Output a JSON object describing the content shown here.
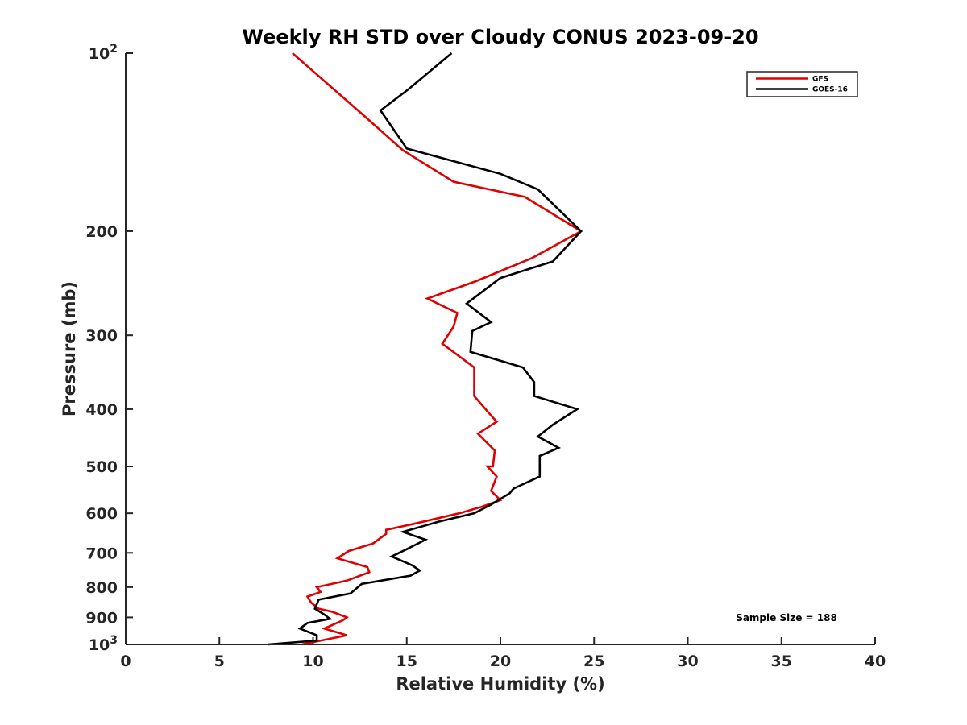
{
  "chart_data": {
    "type": "line",
    "title": "Weekly RH STD over Cloudy CONUS 2023-09-20",
    "xlabel": "Relative Humidity (%)",
    "ylabel": "Pressure (mb)",
    "xlim": [
      0,
      40
    ],
    "ylim": [
      100,
      1000
    ],
    "y_scale": "log",
    "y_reversed": true,
    "grid": false,
    "legend_position": "top-right",
    "x_ticks": [
      "0",
      "5",
      "10",
      "15",
      "20",
      "25",
      "30",
      "35",
      "40"
    ],
    "y_ticks": [
      {
        "value": 100,
        "base": "10",
        "exp": "2"
      },
      {
        "value": 200,
        "label": "200"
      },
      {
        "value": 300,
        "label": "300"
      },
      {
        "value": 400,
        "label": "400"
      },
      {
        "value": 500,
        "label": "500"
      },
      {
        "value": 600,
        "label": "600"
      },
      {
        "value": 700,
        "label": "700"
      },
      {
        "value": 800,
        "label": "800"
      },
      {
        "value": 900,
        "label": "900"
      },
      {
        "value": 1000,
        "base": "10",
        "exp": "3"
      }
    ],
    "annotation": "Sample Size = 188",
    "series": [
      {
        "name": "GFS",
        "color": "#e00000",
        "points": [
          [
            8.9,
            100
          ],
          [
            12.4,
            125
          ],
          [
            14.8,
            146
          ],
          [
            17.5,
            165
          ],
          [
            21.3,
            175
          ],
          [
            24.3,
            200
          ],
          [
            21.7,
            222
          ],
          [
            18.7,
            243
          ],
          [
            16.1,
            260
          ],
          [
            17.7,
            275
          ],
          [
            17.5,
            290
          ],
          [
            16.9,
            310
          ],
          [
            18.6,
            340
          ],
          [
            18.6,
            380
          ],
          [
            19.5,
            410
          ],
          [
            19.8,
            420
          ],
          [
            18.8,
            440
          ],
          [
            19.7,
            470
          ],
          [
            19.6,
            500
          ],
          [
            19.3,
            500
          ],
          [
            19.8,
            520
          ],
          [
            19.5,
            550
          ],
          [
            20.0,
            570
          ],
          [
            19.0,
            585
          ],
          [
            17.8,
            600
          ],
          [
            15.4,
            625
          ],
          [
            13.9,
            640
          ],
          [
            13.9,
            650
          ],
          [
            13.2,
            675
          ],
          [
            11.9,
            695
          ],
          [
            11.3,
            715
          ],
          [
            12.9,
            740
          ],
          [
            13.0,
            755
          ],
          [
            11.8,
            780
          ],
          [
            10.2,
            800
          ],
          [
            10.4,
            815
          ],
          [
            9.7,
            830
          ],
          [
            9.9,
            850
          ],
          [
            10.3,
            870
          ],
          [
            11.0,
            880
          ],
          [
            11.8,
            900
          ],
          [
            11.6,
            910
          ],
          [
            10.6,
            940
          ],
          [
            11.8,
            965
          ],
          [
            9.4,
            1000
          ]
        ]
      },
      {
        "name": "GOES-16",
        "color": "#000000",
        "points": [
          [
            17.4,
            100
          ],
          [
            15.1,
            115
          ],
          [
            13.6,
            125
          ],
          [
            15.0,
            145
          ],
          [
            20.0,
            160
          ],
          [
            22.0,
            170
          ],
          [
            24.3,
            200
          ],
          [
            22.8,
            225
          ],
          [
            20.0,
            240
          ],
          [
            18.2,
            265
          ],
          [
            19.5,
            285
          ],
          [
            18.5,
            295
          ],
          [
            18.4,
            320
          ],
          [
            21.2,
            340
          ],
          [
            21.8,
            360
          ],
          [
            21.8,
            380
          ],
          [
            24.1,
            400
          ],
          [
            22.8,
            425
          ],
          [
            22.0,
            445
          ],
          [
            23.1,
            465
          ],
          [
            22.1,
            480
          ],
          [
            22.1,
            520
          ],
          [
            20.7,
            545
          ],
          [
            20.5,
            555
          ],
          [
            19.5,
            580
          ],
          [
            18.6,
            600
          ],
          [
            16.7,
            620
          ],
          [
            14.8,
            645
          ],
          [
            16.0,
            665
          ],
          [
            15.0,
            690
          ],
          [
            14.2,
            710
          ],
          [
            15.3,
            735
          ],
          [
            15.7,
            750
          ],
          [
            15.2,
            765
          ],
          [
            12.6,
            790
          ],
          [
            12.0,
            820
          ],
          [
            10.3,
            840
          ],
          [
            10.2,
            855
          ],
          [
            10.1,
            870
          ],
          [
            10.6,
            890
          ],
          [
            10.9,
            905
          ],
          [
            9.7,
            920
          ],
          [
            9.3,
            940
          ],
          [
            10.2,
            965
          ],
          [
            10.2,
            985
          ],
          [
            7.6,
            1000
          ]
        ]
      }
    ]
  }
}
